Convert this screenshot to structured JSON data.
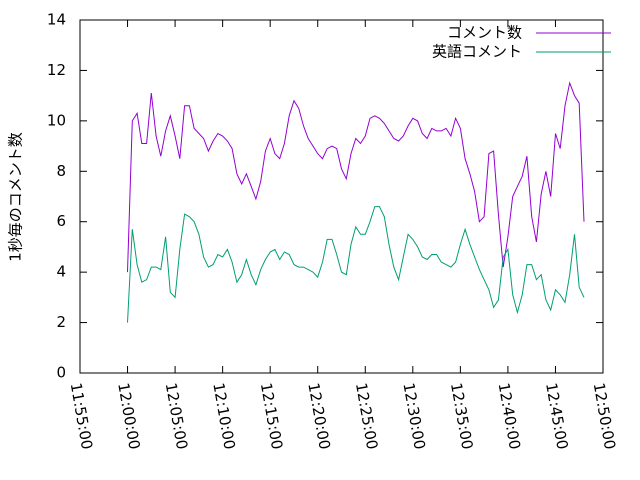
{
  "chart_data": {
    "type": "line",
    "y_label": "1秒毎のコメント数",
    "x": [
      "12:00:00",
      "12:00:30",
      "12:01:00",
      "12:01:30",
      "12:02:00",
      "12:02:30",
      "12:03:00",
      "12:03:30",
      "12:04:00",
      "12:04:30",
      "12:05:00",
      "12:05:30",
      "12:06:00",
      "12:06:30",
      "12:07:00",
      "12:07:30",
      "12:08:00",
      "12:08:30",
      "12:09:00",
      "12:09:30",
      "12:10:00",
      "12:10:30",
      "12:11:00",
      "12:11:30",
      "12:12:00",
      "12:12:30",
      "12:13:00",
      "12:13:30",
      "12:14:00",
      "12:14:30",
      "12:15:00",
      "12:15:30",
      "12:16:00",
      "12:16:30",
      "12:17:00",
      "12:17:30",
      "12:18:00",
      "12:18:30",
      "12:19:00",
      "12:19:30",
      "12:20:00",
      "12:20:30",
      "12:21:00",
      "12:21:30",
      "12:22:00",
      "12:22:30",
      "12:23:00",
      "12:23:30",
      "12:24:00",
      "12:24:30",
      "12:25:00",
      "12:25:30",
      "12:26:00",
      "12:26:30",
      "12:27:00",
      "12:27:30",
      "12:28:00",
      "12:28:30",
      "12:29:00",
      "12:29:30",
      "12:30:00",
      "12:30:30",
      "12:31:00",
      "12:31:30",
      "12:32:00",
      "12:32:30",
      "12:33:00",
      "12:33:30",
      "12:34:00",
      "12:34:30",
      "12:35:00",
      "12:35:30",
      "12:36:00",
      "12:36:30",
      "12:37:00",
      "12:37:30",
      "12:38:00",
      "12:38:30",
      "12:39:00",
      "12:39:30",
      "12:40:00",
      "12:40:30",
      "12:41:00",
      "12:41:30",
      "12:42:00",
      "12:42:30",
      "12:43:00",
      "12:43:30",
      "12:44:00",
      "12:44:30",
      "12:45:00",
      "12:45:30",
      "12:46:00",
      "12:46:30",
      "12:47:00",
      "12:47:30",
      "12:48:00"
    ],
    "series": [
      {
        "name": "コメント数",
        "color": "#9400d3",
        "values": [
          4.0,
          10.0,
          10.3,
          9.1,
          9.1,
          11.1,
          9.4,
          8.6,
          9.6,
          10.2,
          9.4,
          8.5,
          10.6,
          10.6,
          9.7,
          9.5,
          9.3,
          8.8,
          9.2,
          9.5,
          9.4,
          9.2,
          8.9,
          7.9,
          7.5,
          7.9,
          7.4,
          6.9,
          7.6,
          8.8,
          9.3,
          8.7,
          8.5,
          9.1,
          10.2,
          10.8,
          10.5,
          9.8,
          9.3,
          9.0,
          8.7,
          8.5,
          8.9,
          9.0,
          8.9,
          8.1,
          7.7,
          8.7,
          9.3,
          9.1,
          9.4,
          10.1,
          10.2,
          10.1,
          9.9,
          9.6,
          9.3,
          9.2,
          9.4,
          9.8,
          10.1,
          10.0,
          9.5,
          9.3,
          9.7,
          9.6,
          9.6,
          9.7,
          9.4,
          10.1,
          9.7,
          8.5,
          7.9,
          7.2,
          6.0,
          6.2,
          8.7,
          8.8,
          6.3,
          4.2,
          5.4,
          7.0,
          7.4,
          7.8,
          8.6,
          6.2,
          5.2,
          7.1,
          8.0,
          7.0,
          9.5,
          8.9,
          10.6,
          11.5,
          11.0,
          10.7,
          6.0
        ]
      },
      {
        "name": "英語コメント",
        "color": "#009e73",
        "values": [
          2.0,
          5.7,
          4.3,
          3.6,
          3.7,
          4.2,
          4.2,
          4.1,
          5.4,
          3.2,
          3.0,
          4.9,
          6.3,
          6.2,
          6.0,
          5.5,
          4.6,
          4.2,
          4.3,
          4.7,
          4.6,
          4.9,
          4.4,
          3.6,
          3.9,
          4.5,
          3.9,
          3.5,
          4.1,
          4.5,
          4.8,
          4.9,
          4.5,
          4.8,
          4.7,
          4.3,
          4.2,
          4.2,
          4.1,
          4.0,
          3.8,
          4.4,
          5.3,
          5.3,
          4.7,
          4.0,
          3.9,
          5.1,
          5.8,
          5.5,
          5.5,
          6.0,
          6.6,
          6.6,
          6.2,
          5.1,
          4.2,
          3.7,
          4.6,
          5.5,
          5.3,
          5.0,
          4.6,
          4.5,
          4.7,
          4.7,
          4.4,
          4.3,
          4.2,
          4.4,
          5.1,
          5.7,
          5.1,
          4.6,
          4.1,
          3.7,
          3.3,
          2.6,
          2.9,
          4.6,
          4.9,
          3.1,
          2.4,
          3.1,
          4.3,
          4.3,
          3.7,
          3.9,
          2.9,
          2.5,
          3.3,
          3.1,
          2.8,
          3.9,
          5.5,
          3.4,
          3.0
        ]
      }
    ],
    "xlim": [
      "11:55:00",
      "12:50:00"
    ],
    "xticks": [
      "11:55:00",
      "12:00:00",
      "12:05:00",
      "12:10:00",
      "12:15:00",
      "12:20:00",
      "12:25:00",
      "12:30:00",
      "12:35:00",
      "12:40:00",
      "12:45:00",
      "12:50:00"
    ],
    "ylim": [
      0,
      14
    ],
    "yticks": [
      0,
      2,
      4,
      6,
      8,
      10,
      12,
      14
    ],
    "legend": "top-right"
  }
}
